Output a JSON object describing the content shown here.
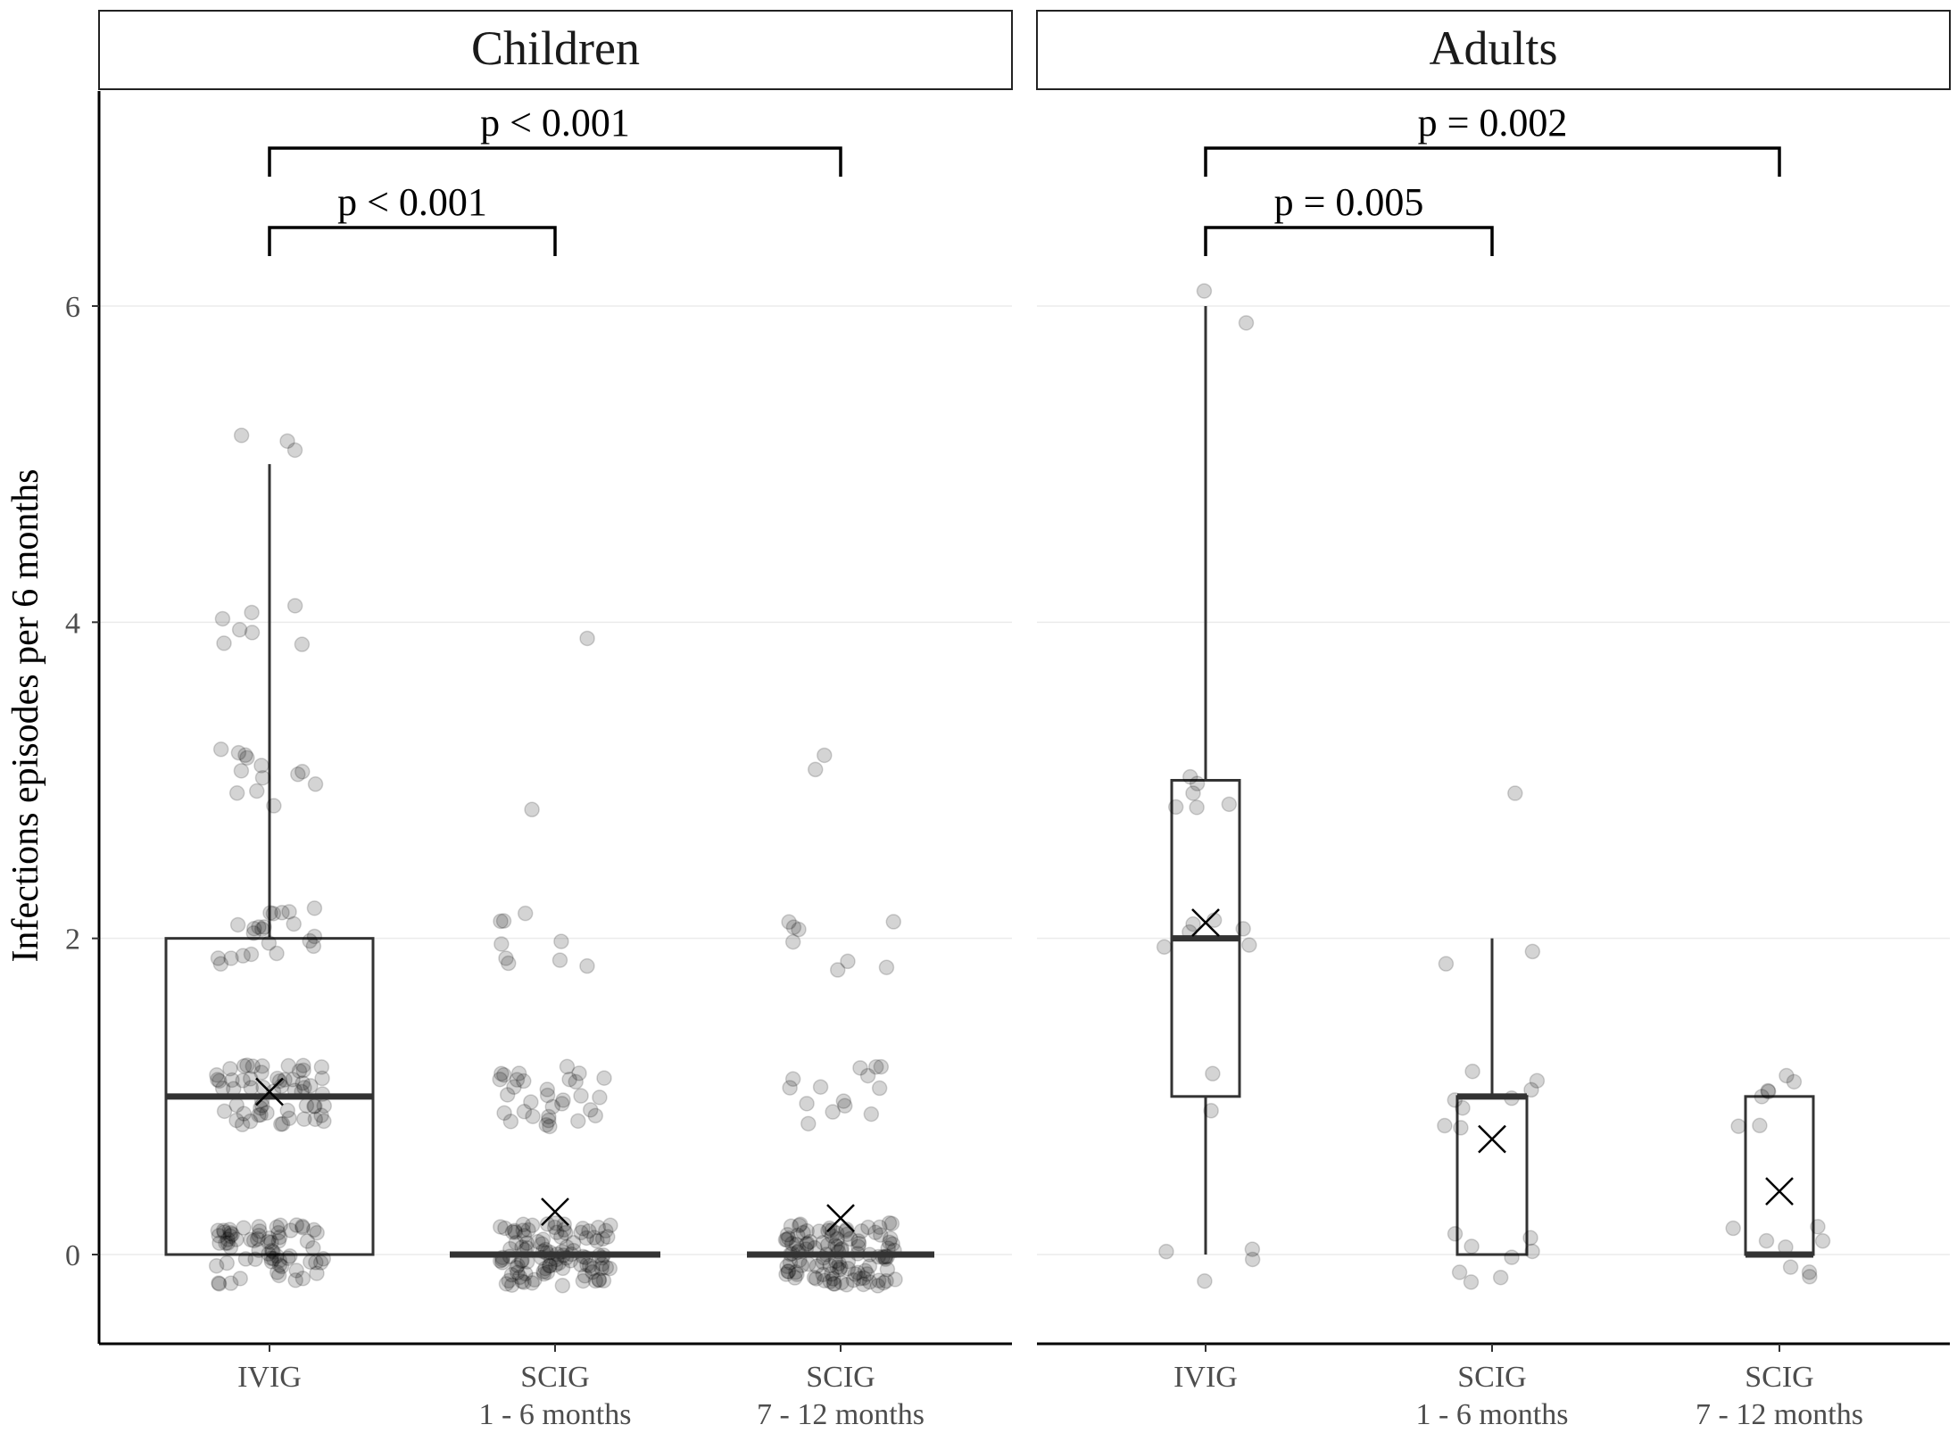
{
  "chart_data": {
    "type": "box",
    "ylabel": "Infections episodes per 6 months",
    "ylim": [
      -0.55,
      7.4
    ],
    "yticks": [
      0,
      2,
      4,
      6
    ],
    "grid": "horizontal",
    "categories": [
      {
        "line1": "IVIG",
        "line2": ""
      },
      {
        "line1": "SCIG",
        "line2": "1 - 6 months"
      },
      {
        "line1": "SCIG",
        "line2": "7 - 12 months"
      }
    ],
    "panels": [
      {
        "title": "Children",
        "boxes": [
          {
            "q1": 0,
            "median": 1,
            "q3": 2,
            "lower": 0,
            "upper": 5,
            "mean": 1.03
          },
          {
            "q1": 0,
            "median": 0,
            "q3": 0,
            "lower": 0,
            "upper": 0,
            "mean": 0.27
          },
          {
            "q1": 0,
            "median": 0,
            "q3": 0,
            "lower": 0,
            "upper": 0,
            "mean": 0.23
          }
        ],
        "comparisons": [
          {
            "from": 0,
            "to": 2,
            "label": "p < 0.001",
            "level": 2
          },
          {
            "from": 0,
            "to": 1,
            "label": "p < 0.001",
            "level": 1
          }
        ],
        "counts": [
          {
            "0": 68,
            "1": 58,
            "2": 22,
            "3": 13,
            "4": 7,
            "5": 3
          },
          {
            "0": 105,
            "1": 32,
            "2": 9,
            "3": 1,
            "4": 1
          },
          {
            "0": 112,
            "1": 14,
            "2": 8,
            "3": 2
          }
        ]
      },
      {
        "title": "Adults",
        "boxes": [
          {
            "q1": 1,
            "median": 2,
            "q3": 3,
            "lower": 0,
            "upper": 6,
            "mean": 2.1
          },
          {
            "q1": 0,
            "median": 1,
            "q3": 1,
            "lower": 0,
            "upper": 2,
            "mean": 0.73
          },
          {
            "q1": 0,
            "median": 0,
            "q3": 1,
            "lower": 0,
            "upper": 1,
            "mean": 0.4
          }
        ],
        "comparisons": [
          {
            "from": 0,
            "to": 2,
            "label": "p = 0.002",
            "level": 2
          },
          {
            "from": 0,
            "to": 1,
            "label": "p = 0.005",
            "level": 1
          }
        ],
        "counts": [
          {
            "0": 4,
            "1": 2,
            "2": 6,
            "3": 6,
            "6": 2
          },
          {
            "0": 8,
            "1": 8,
            "2": 2,
            "3": 1
          },
          {
            "0": 8,
            "1": 7
          }
        ]
      }
    ]
  }
}
